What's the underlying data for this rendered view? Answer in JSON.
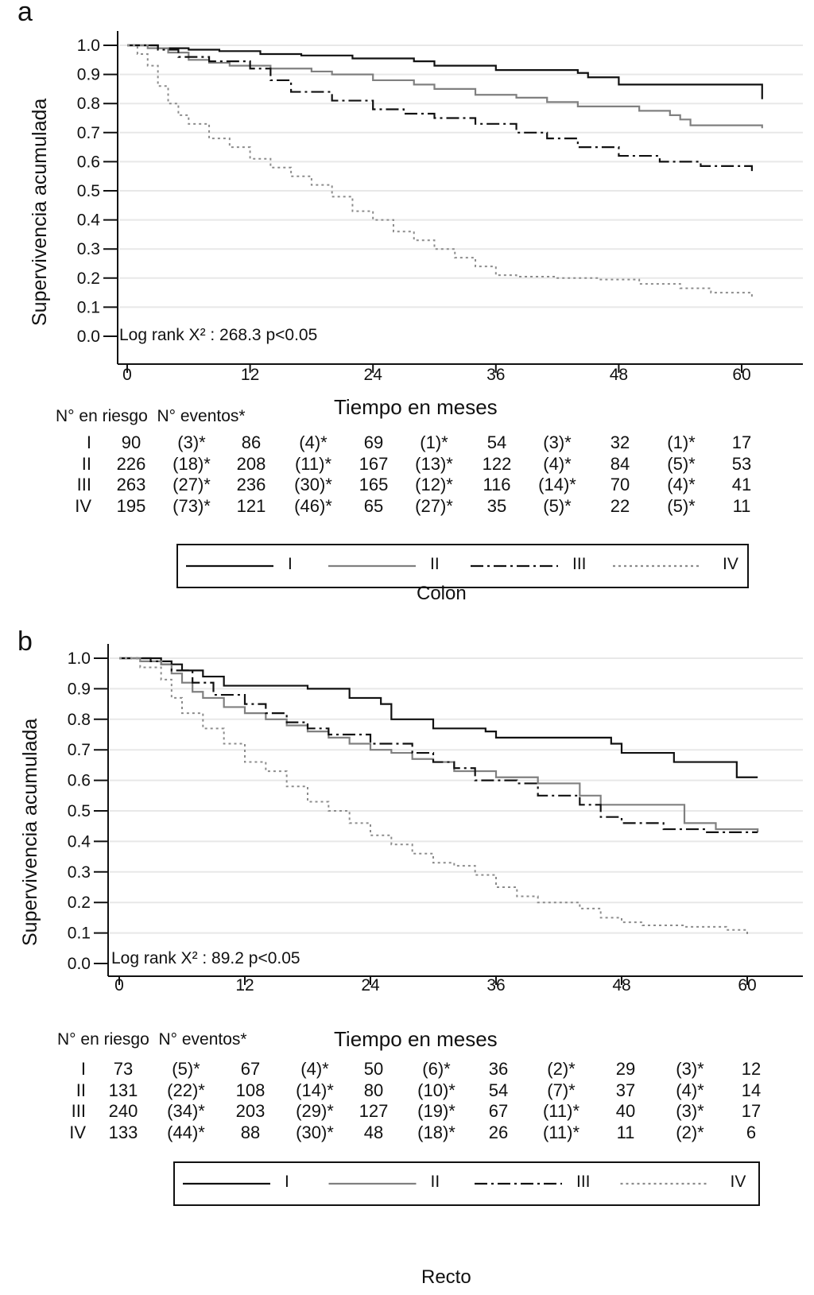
{
  "chart_data": [
    {
      "type": "line",
      "panel_letter": "a",
      "caption": "Colon",
      "title": "",
      "xlabel": "Tiempo en meses",
      "ylabel": "Supervivencia acumulada",
      "xlim": [
        0,
        62
      ],
      "ylim": [
        0,
        1
      ],
      "xticks": [
        0,
        12,
        24,
        36,
        48,
        60
      ],
      "yticks": [
        "0.0",
        "0.1",
        "0.2",
        "0.3",
        "0.4",
        "0.5",
        "0.6",
        "0.7",
        "0.8",
        "0.9",
        "1.0"
      ],
      "grid": true,
      "annotation": "Log rank X² : 268.3  p<0.05",
      "legend_position": "bottom",
      "series": [
        {
          "name": "I",
          "style": "solid",
          "color": "#111111",
          "x": [
            0,
            3,
            6,
            9,
            13,
            17,
            22,
            28,
            30,
            36,
            44,
            45,
            48,
            62
          ],
          "y": [
            1.0,
            0.99,
            0.985,
            0.98,
            0.97,
            0.965,
            0.955,
            0.945,
            0.93,
            0.915,
            0.905,
            0.89,
            0.865,
            0.815
          ]
        },
        {
          "name": "II",
          "style": "solid",
          "color": "#808080",
          "x": [
            0,
            2,
            4,
            6,
            8,
            10,
            14,
            18,
            20,
            24,
            28,
            30,
            34,
            38,
            41,
            44,
            50,
            53,
            54,
            55,
            62
          ],
          "y": [
            1.0,
            0.99,
            0.975,
            0.95,
            0.94,
            0.93,
            0.92,
            0.91,
            0.9,
            0.88,
            0.865,
            0.85,
            0.83,
            0.82,
            0.805,
            0.79,
            0.775,
            0.76,
            0.745,
            0.725,
            0.715
          ]
        },
        {
          "name": "III",
          "style": "dashdot",
          "color": "#111111",
          "x": [
            0,
            3,
            5,
            8,
            12,
            14,
            16,
            20,
            24,
            27,
            30,
            34,
            38,
            41,
            44,
            48,
            52,
            56,
            61
          ],
          "y": [
            1.0,
            0.985,
            0.96,
            0.945,
            0.92,
            0.88,
            0.84,
            0.81,
            0.78,
            0.765,
            0.75,
            0.73,
            0.7,
            0.68,
            0.65,
            0.62,
            0.6,
            0.585,
            0.565
          ]
        },
        {
          "name": "IV",
          "style": "dotted",
          "color": "#8c8c8c",
          "x": [
            0,
            1,
            2,
            3,
            4,
            5,
            6,
            8,
            10,
            12,
            14,
            16,
            18,
            20,
            22,
            24,
            26,
            28,
            30,
            32,
            34,
            36,
            38,
            42,
            46,
            50,
            54,
            57,
            61
          ],
          "y": [
            1.0,
            0.97,
            0.93,
            0.86,
            0.8,
            0.76,
            0.73,
            0.68,
            0.65,
            0.61,
            0.58,
            0.55,
            0.52,
            0.48,
            0.43,
            0.4,
            0.36,
            0.33,
            0.3,
            0.27,
            0.24,
            0.21,
            0.205,
            0.2,
            0.195,
            0.18,
            0.165,
            0.15,
            0.13
          ]
        }
      ]
    },
    {
      "type": "line",
      "panel_letter": "b",
      "caption": "Recto",
      "title": "",
      "xlabel": "Tiempo en meses",
      "ylabel": "Supervivencia acumulada",
      "xlim": [
        0,
        62
      ],
      "ylim": [
        0,
        1
      ],
      "xticks": [
        0,
        12,
        24,
        36,
        48,
        60
      ],
      "yticks": [
        "0.0",
        "0.1",
        "0.2",
        "0.3",
        "0.4",
        "0.5",
        "0.6",
        "0.7",
        "0.8",
        "0.9",
        "1.0"
      ],
      "grid": true,
      "annotation": "Log rank X² : 89.2  p<0.05",
      "legend_position": "bottom",
      "series": [
        {
          "name": "I",
          "style": "solid",
          "color": "#111111",
          "x": [
            0,
            4,
            6,
            8,
            10,
            18,
            22,
            25,
            26,
            30,
            35,
            36,
            47,
            48,
            53,
            59,
            61
          ],
          "y": [
            1.0,
            0.98,
            0.96,
            0.94,
            0.91,
            0.9,
            0.87,
            0.85,
            0.8,
            0.77,
            0.76,
            0.74,
            0.72,
            0.69,
            0.66,
            0.61,
            0.61
          ]
        },
        {
          "name": "II",
          "style": "solid",
          "color": "#808080",
          "x": [
            0,
            2,
            4,
            5,
            6,
            7,
            8,
            10,
            12,
            14,
            16,
            18,
            20,
            22,
            24,
            26,
            28,
            30,
            32,
            36,
            40,
            44,
            46,
            54,
            57,
            61
          ],
          "y": [
            1.0,
            0.99,
            0.98,
            0.95,
            0.92,
            0.89,
            0.87,
            0.84,
            0.82,
            0.8,
            0.78,
            0.76,
            0.74,
            0.72,
            0.7,
            0.69,
            0.67,
            0.66,
            0.63,
            0.61,
            0.59,
            0.55,
            0.52,
            0.46,
            0.44,
            0.43
          ]
        },
        {
          "name": "III",
          "style": "dashdot",
          "color": "#111111",
          "x": [
            0,
            3,
            5,
            7,
            9,
            12,
            14,
            16,
            18,
            20,
            24,
            28,
            30,
            32,
            34,
            38,
            40,
            44,
            46,
            48,
            52,
            56,
            61
          ],
          "y": [
            1.0,
            0.99,
            0.96,
            0.92,
            0.88,
            0.85,
            0.82,
            0.79,
            0.77,
            0.75,
            0.72,
            0.69,
            0.66,
            0.64,
            0.6,
            0.59,
            0.55,
            0.52,
            0.48,
            0.46,
            0.44,
            0.43,
            0.43
          ]
        },
        {
          "name": "IV",
          "style": "dotted",
          "color": "#8c8c8c",
          "x": [
            0,
            2,
            4,
            5,
            6,
            8,
            10,
            12,
            14,
            16,
            18,
            20,
            22,
            24,
            26,
            28,
            30,
            32,
            34,
            36,
            38,
            40,
            44,
            46,
            48,
            50,
            54,
            58,
            60
          ],
          "y": [
            1.0,
            0.97,
            0.93,
            0.87,
            0.82,
            0.77,
            0.72,
            0.66,
            0.63,
            0.58,
            0.53,
            0.5,
            0.46,
            0.42,
            0.39,
            0.36,
            0.33,
            0.32,
            0.29,
            0.25,
            0.22,
            0.2,
            0.18,
            0.15,
            0.135,
            0.125,
            0.12,
            0.11,
            0.09
          ]
        }
      ]
    }
  ],
  "panels": [
    {
      "risk_table": {
        "header_risk": "N° en riesgo",
        "header_events": "N° eventos*",
        "rows": [
          {
            "stage": "I",
            "cells": [
              "90",
              "(3)*",
              "86",
              "(4)*",
              "69",
              "(1)*",
              "54",
              "(3)*",
              "32",
              "(1)*",
              "17"
            ]
          },
          {
            "stage": "II",
            "cells": [
              "226",
              "(18)*",
              "208",
              "(11)*",
              "167",
              "(13)*",
              "122",
              "(4)*",
              "84",
              "(5)*",
              "53"
            ]
          },
          {
            "stage": "III",
            "cells": [
              "263",
              "(27)*",
              "236",
              "(30)*",
              "165",
              "(12)*",
              "116",
              "(14)*",
              "70",
              "(4)*",
              "41"
            ]
          },
          {
            "stage": "IV",
            "cells": [
              "195",
              "(73)*",
              "121",
              "(46)*",
              "65",
              "(27)*",
              "35",
              "(5)*",
              "22",
              "(5)*",
              "11"
            ]
          }
        ]
      },
      "legend": [
        "I",
        "II",
        "III",
        "IV"
      ]
    },
    {
      "risk_table": {
        "header_risk": "N° en riesgo",
        "header_events": "N° eventos*",
        "rows": [
          {
            "stage": "I",
            "cells": [
              "73",
              "(5)*",
              "67",
              "(4)*",
              "50",
              "(6)*",
              "36",
              "(2)*",
              "29",
              "(3)*",
              "12"
            ]
          },
          {
            "stage": "II",
            "cells": [
              "131",
              "(22)*",
              "108",
              "(14)*",
              "80",
              "(10)*",
              "54",
              "(7)*",
              "37",
              "(4)*",
              "14"
            ]
          },
          {
            "stage": "III",
            "cells": [
              "240",
              "(34)*",
              "203",
              "(29)*",
              "127",
              "(19)*",
              "67",
              "(11)*",
              "40",
              "(3)*",
              "17"
            ]
          },
          {
            "stage": "IV",
            "cells": [
              "133",
              "(44)*",
              "88",
              "(30)*",
              "48",
              "(18)*",
              "26",
              "(11)*",
              "11",
              "(2)*",
              "6"
            ]
          }
        ]
      },
      "legend": [
        "I",
        "II",
        "III",
        "IV"
      ]
    }
  ]
}
